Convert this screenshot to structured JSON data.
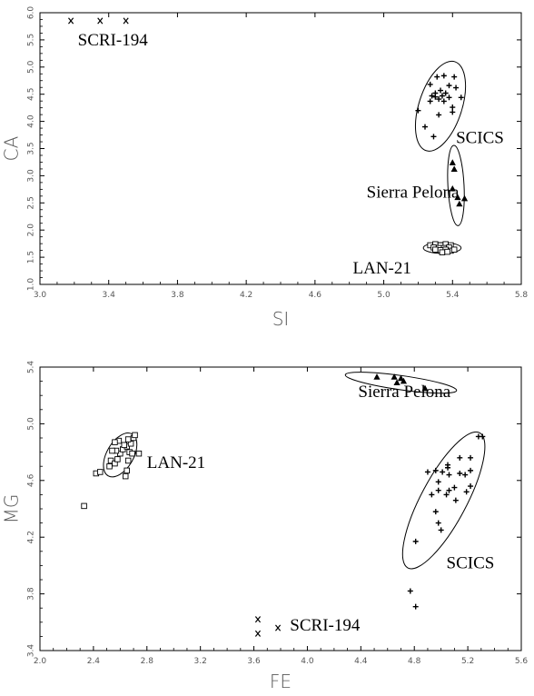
{
  "chart_data": [
    {
      "type": "scatter",
      "title": "",
      "xlabel": "SI",
      "ylabel": "CA",
      "xlim": [
        3.0,
        5.8
      ],
      "ylim": [
        1.0,
        6.0
      ],
      "xticks": [
        "3.0",
        "3.4",
        "3.8",
        "4.2",
        "4.6",
        "5.0",
        "5.4",
        "5.8"
      ],
      "yticks": [
        "1.0",
        "1.5",
        "2.0",
        "2.5",
        "3.0",
        "3.5",
        "4.0",
        "4.5",
        "5.0",
        "5.5",
        "6.0"
      ],
      "grid": false,
      "series": [
        {
          "name": "SCRI-194",
          "marker": "x",
          "points": [
            [
              3.18,
              5.85
            ],
            [
              3.35,
              5.85
            ],
            [
              3.5,
              5.85
            ]
          ]
        },
        {
          "name": "SCICS",
          "marker": "plus",
          "points": [
            [
              5.31,
              4.82
            ],
            [
              5.35,
              4.84
            ],
            [
              5.41,
              4.82
            ],
            [
              5.27,
              4.68
            ],
            [
              5.38,
              4.66
            ],
            [
              5.42,
              4.62
            ],
            [
              5.33,
              4.57
            ],
            [
              5.3,
              4.52
            ],
            [
              5.36,
              4.52
            ],
            [
              5.28,
              4.47
            ],
            [
              5.34,
              4.47
            ],
            [
              5.3,
              4.45
            ],
            [
              5.38,
              4.44
            ],
            [
              5.45,
              4.44
            ],
            [
              5.32,
              4.41
            ],
            [
              5.27,
              4.37
            ],
            [
              5.35,
              4.37
            ],
            [
              5.4,
              4.26
            ],
            [
              5.32,
              4.12
            ],
            [
              5.4,
              4.17
            ],
            [
              5.2,
              4.2
            ],
            [
              5.24,
              3.9
            ],
            [
              5.29,
              3.72
            ]
          ]
        },
        {
          "name": "Sierra Pelona",
          "marker": "triangle",
          "points": [
            [
              5.4,
              3.24
            ],
            [
              5.41,
              3.12
            ],
            [
              5.4,
              2.76
            ],
            [
              5.43,
              2.6
            ],
            [
              5.47,
              2.58
            ],
            [
              5.44,
              2.48
            ]
          ]
        },
        {
          "name": "LAN-21",
          "marker": "square",
          "points": [
            [
              5.27,
              1.72
            ],
            [
              5.3,
              1.74
            ],
            [
              5.33,
              1.72
            ],
            [
              5.36,
              1.74
            ],
            [
              5.39,
              1.72
            ],
            [
              5.29,
              1.68
            ],
            [
              5.32,
              1.67
            ],
            [
              5.35,
              1.67
            ],
            [
              5.38,
              1.68
            ],
            [
              5.3,
              1.64
            ],
            [
              5.33,
              1.63
            ],
            [
              5.36,
              1.64
            ],
            [
              5.39,
              1.62
            ],
            [
              5.34,
              1.59
            ],
            [
              5.37,
              1.6
            ],
            [
              5.41,
              1.64
            ]
          ]
        }
      ],
      "ellipses": [
        {
          "group": "SCICS",
          "center": [
            5.33,
            4.28
          ],
          "rx": 0.125,
          "ry": 0.86,
          "rotation_deg": 18
        },
        {
          "group": "Sierra Pelona",
          "center": [
            5.42,
            2.82
          ],
          "rx": 0.047,
          "ry": 0.74,
          "rotation_deg": -3
        },
        {
          "group": "LAN-21",
          "center": [
            5.34,
            1.67
          ],
          "rx": 0.11,
          "ry": 0.1,
          "rotation_deg": 0
        }
      ],
      "annotations": [
        {
          "text": "SCRI-194",
          "x": 3.22,
          "y": 5.4
        },
        {
          "text": "SCICS",
          "x": 5.42,
          "y": 3.6
        },
        {
          "text": "Sierra Pelona",
          "x": 4.9,
          "y": 2.6
        },
        {
          "text": "LAN-21",
          "x": 4.82,
          "y": 1.2
        }
      ]
    },
    {
      "type": "scatter",
      "title": "",
      "xlabel": "FE",
      "ylabel": "MG",
      "xlim": [
        2.0,
        5.6
      ],
      "ylim": [
        3.4,
        5.4
      ],
      "xticks": [
        "2.0",
        "2.4",
        "2.8",
        "3.2",
        "3.6",
        "4.0",
        "4.4",
        "4.8",
        "5.2",
        "5.6"
      ],
      "yticks": [
        "3.4",
        "3.8",
        "4.2",
        "4.6",
        "5.0",
        "5.4"
      ],
      "grid": false,
      "series": [
        {
          "name": "SCRI-194",
          "marker": "x",
          "points": [
            [
              3.63,
              3.62
            ],
            [
              3.63,
              3.52
            ],
            [
              3.78,
              3.56
            ]
          ]
        },
        {
          "name": "SCICS",
          "marker": "plus",
          "points": [
            [
              5.28,
              4.91
            ],
            [
              5.31,
              4.91
            ],
            [
              5.14,
              4.76
            ],
            [
              5.22,
              4.76
            ],
            [
              5.05,
              4.71
            ],
            [
              5.05,
              4.69
            ],
            [
              4.96,
              4.67
            ],
            [
              5.01,
              4.66
            ],
            [
              4.9,
              4.66
            ],
            [
              5.14,
              4.65
            ],
            [
              5.18,
              4.64
            ],
            [
              5.22,
              4.67
            ],
            [
              5.06,
              4.64
            ],
            [
              4.98,
              4.59
            ],
            [
              5.1,
              4.55
            ],
            [
              5.22,
              4.56
            ],
            [
              5.06,
              4.53
            ],
            [
              5.19,
              4.52
            ],
            [
              4.98,
              4.53
            ],
            [
              4.93,
              4.5
            ],
            [
              5.04,
              4.5
            ],
            [
              5.11,
              4.46
            ],
            [
              4.96,
              4.38
            ],
            [
              4.98,
              4.3
            ],
            [
              5.0,
              4.25
            ],
            [
              4.81,
              4.17
            ],
            [
              4.77,
              3.82
            ],
            [
              4.81,
              3.71
            ]
          ]
        },
        {
          "name": "Sierra Pelona",
          "marker": "triangle",
          "points": [
            [
              4.52,
              5.33
            ],
            [
              4.65,
              5.33
            ],
            [
              4.7,
              5.32
            ],
            [
              4.67,
              5.29
            ],
            [
              4.72,
              5.3
            ],
            [
              4.88,
              5.25
            ]
          ]
        },
        {
          "name": "LAN-21",
          "marker": "square",
          "points": [
            [
              2.33,
              4.42
            ],
            [
              2.42,
              4.65
            ],
            [
              2.45,
              4.66
            ],
            [
              2.53,
              4.74
            ],
            [
              2.56,
              4.72
            ],
            [
              2.58,
              4.75
            ],
            [
              2.6,
              4.79
            ],
            [
              2.57,
              4.81
            ],
            [
              2.54,
              4.81
            ],
            [
              2.62,
              4.82
            ],
            [
              2.65,
              4.84
            ],
            [
              2.68,
              4.86
            ],
            [
              2.7,
              4.9
            ],
            [
              2.71,
              4.92
            ],
            [
              2.66,
              4.89
            ],
            [
              2.59,
              4.88
            ],
            [
              2.56,
              4.87
            ],
            [
              2.63,
              4.85
            ],
            [
              2.67,
              4.8
            ],
            [
              2.69,
              4.79
            ],
            [
              2.74,
              4.79
            ],
            [
              2.66,
              4.74
            ],
            [
              2.65,
              4.67
            ],
            [
              2.64,
              4.63
            ],
            [
              2.52,
              4.7
            ]
          ]
        }
      ],
      "ellipses": [
        {
          "group": "SCICS",
          "center": [
            5.02,
            4.46
          ],
          "rx": 0.17,
          "ry": 0.54,
          "rotation_deg": 28
        },
        {
          "group": "Sierra Pelona",
          "center": [
            4.7,
            5.29
          ],
          "rx": 0.42,
          "ry": 0.05,
          "rotation_deg": 8
        },
        {
          "group": "LAN-21",
          "center": [
            2.6,
            4.78
          ],
          "rx": 0.1,
          "ry": 0.17,
          "rotation_deg": 30
        }
      ],
      "annotations": [
        {
          "text": "SCRI-194",
          "x": 3.87,
          "y": 3.54
        },
        {
          "text": "SCICS",
          "x": 5.04,
          "y": 3.98
        },
        {
          "text": "Sierra Pelona",
          "x": 4.38,
          "y": 5.19
        },
        {
          "text": "LAN-21",
          "x": 2.8,
          "y": 4.69
        }
      ]
    }
  ]
}
